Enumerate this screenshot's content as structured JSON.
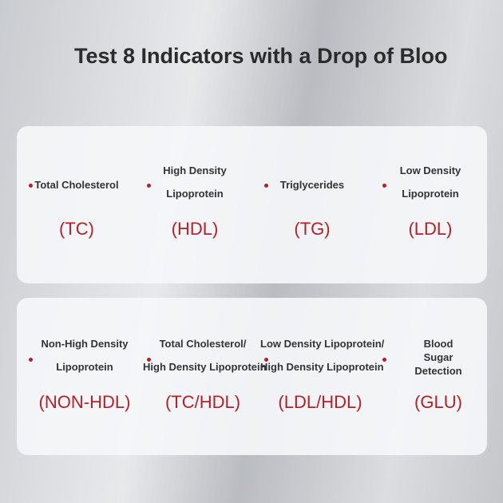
{
  "header": {
    "title": "Test 8 Indicators with a Drop of Bloo"
  },
  "panels": [
    {
      "items": [
        {
          "lines": [
            "Total Cholesterol"
          ],
          "abbr": "(TC)"
        },
        {
          "lines": [
            "High Density",
            "Lipoprotein"
          ],
          "abbr": "(HDL)"
        },
        {
          "lines": [
            "Triglycerides"
          ],
          "abbr": "(TG)"
        },
        {
          "lines": [
            "Low Density",
            "Lipoprotein"
          ],
          "abbr": "(LDL)"
        }
      ]
    },
    {
      "items": [
        {
          "lines": [
            "Non-High Density",
            "Lipoprotein"
          ],
          "abbr": "(NON-HDL)"
        },
        {
          "lines": [
            "Total Cholesterol/",
            "High Density Lipoprotein"
          ],
          "abbr": "(TC/HDL)"
        },
        {
          "lines": [
            "Low Density Lipoprotein/",
            "High Density Lipoprotein"
          ],
          "abbr": "(LDL/HDL)"
        },
        {
          "lines": [
            "Blood",
            "Sugar",
            "Detection"
          ],
          "abbr": "(GLU)"
        }
      ]
    }
  ]
}
